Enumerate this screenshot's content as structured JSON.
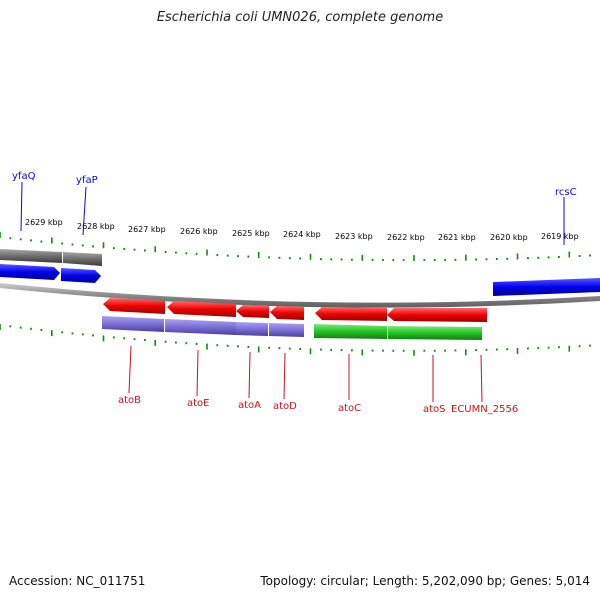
{
  "title": "Escherichia coli UMN026, complete genome",
  "footer": {
    "accession": "Accession: NC_011751",
    "summary": "Topology: circular; Length: 5,202,090 bp; Genes: 5,014"
  },
  "ruler": {
    "unit": "kbp",
    "labels": [
      "2629 kbp",
      "2628 kbp",
      "2627 kbp",
      "2626 kbp",
      "2625 kbp",
      "2624 kbp",
      "2623 kbp",
      "2622 kbp",
      "2621 kbp",
      "2620 kbp",
      "2619 kbp"
    ]
  },
  "genes_top": [
    {
      "name": "yfaQ",
      "color": "#0a0ac8"
    },
    {
      "name": "yfaP",
      "color": "#0a0ac8"
    },
    {
      "name": "rcsC",
      "color": "#0a0ac8"
    }
  ],
  "genes_bottom": [
    {
      "name": "atoB",
      "color": "#c8141e"
    },
    {
      "name": "atoE",
      "color": "#c8141e"
    },
    {
      "name": "atoA",
      "color": "#c8141e"
    },
    {
      "name": "atoD",
      "color": "#c8141e"
    },
    {
      "name": "atoC",
      "color": "#c8141e"
    },
    {
      "name": "atoS",
      "color": "#c8141e"
    },
    {
      "name": "ECUMN_2556",
      "color": "#c8141e"
    }
  ],
  "colors": {
    "forward_cds": "#0000ff",
    "reverse_cds": "#ee0000",
    "gene_gray": "#6e6e6e",
    "rna_purple": "#7b6fd6",
    "green_feature": "#22c422",
    "ruler_ticks": "#138a13",
    "backbone": "#8a8a8a"
  }
}
